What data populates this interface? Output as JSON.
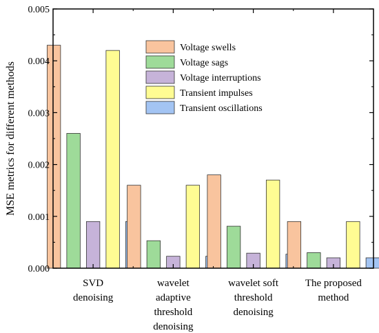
{
  "chart_data": {
    "type": "bar",
    "title": "",
    "xlabel": "",
    "ylabel": "MSE metrics for different methods",
    "ylim": [
      0,
      0.005
    ],
    "yticks": [
      "0.000",
      "0.001",
      "0.002",
      "0.003",
      "0.004",
      "0.005"
    ],
    "grid": false,
    "legend_position": "top-right",
    "categories": [
      [
        "SVD",
        "denoising"
      ],
      [
        "wavelet",
        "adaptive",
        "threshold",
        "denoising"
      ],
      [
        "wavelet soft",
        "threshold",
        "denoising"
      ],
      [
        "The proposed",
        "method"
      ]
    ],
    "series": [
      {
        "name": "Voltage swells",
        "color": "#f9c49e",
        "values": [
          0.0043,
          0.0016,
          0.0018,
          0.0009
        ]
      },
      {
        "name": "Voltage sags",
        "color": "#9edb99",
        "values": [
          0.0026,
          0.00053,
          0.00081,
          0.0003
        ]
      },
      {
        "name": "Voltage interruptions",
        "color": "#c6b3d9",
        "values": [
          0.0009,
          0.00023,
          0.00029,
          0.0002
        ]
      },
      {
        "name": "Transient impulses",
        "color": "#fffc93",
        "values": [
          0.0042,
          0.0016,
          0.0017,
          0.0009
        ]
      },
      {
        "name": "Transient oscillations",
        "color": "#a3c4f3",
        "values": [
          0.0009,
          0.00023,
          0.00027,
          0.0002
        ]
      }
    ]
  }
}
